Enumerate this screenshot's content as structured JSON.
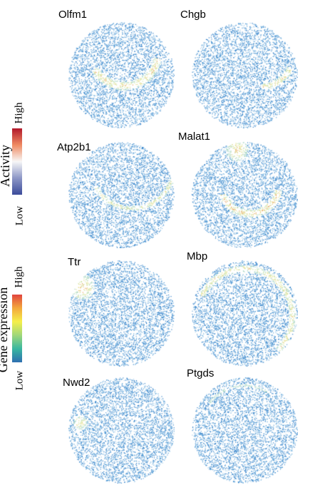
{
  "legends": {
    "activity": {
      "title": "Activity",
      "high": "High",
      "low": "Low",
      "colors": [
        "#b2182b",
        "#ef8a62",
        "#f7f7f7",
        "#8c96c6",
        "#3b4b9a"
      ]
    },
    "expression": {
      "title": "Gene expression",
      "high": "High",
      "low": "Low",
      "colors": [
        "#e0443e",
        "#f3a83b",
        "#f5ef4a",
        "#9fd77a",
        "#39b7a0",
        "#2f6fb0"
      ]
    }
  },
  "panels": [
    {
      "gene": "Olfm1",
      "feature": "cortex-band"
    },
    {
      "gene": "Chgb",
      "feature": "lower-band"
    },
    {
      "gene": "Atp2b1",
      "feature": "arc"
    },
    {
      "gene": "Malat1",
      "feature": "strong-arc"
    },
    {
      "gene": "Ttr",
      "feature": "left-patch"
    },
    {
      "gene": "Mbp",
      "feature": "outer-arc"
    },
    {
      "gene": "Nwd2",
      "feature": "small-left"
    },
    {
      "gene": "Ptgds",
      "feature": "faint"
    }
  ],
  "colors": {
    "base_spot": "#2f7fc8",
    "hot_spot": "#e7d88a"
  }
}
